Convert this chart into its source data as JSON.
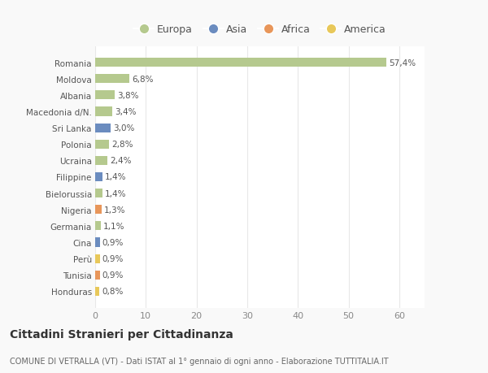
{
  "categories": [
    "Romania",
    "Moldova",
    "Albania",
    "Macedonia d/N.",
    "Sri Lanka",
    "Polonia",
    "Ucraina",
    "Filippine",
    "Bielorussia",
    "Nigeria",
    "Germania",
    "Cina",
    "Perù",
    "Tunisia",
    "Honduras"
  ],
  "values": [
    57.4,
    6.8,
    3.8,
    3.4,
    3.0,
    2.8,
    2.4,
    1.4,
    1.4,
    1.3,
    1.1,
    0.9,
    0.9,
    0.9,
    0.8
  ],
  "labels": [
    "57,4%",
    "6,8%",
    "3,8%",
    "3,4%",
    "3,0%",
    "2,8%",
    "2,4%",
    "1,4%",
    "1,4%",
    "1,3%",
    "1,1%",
    "0,9%",
    "0,9%",
    "0,9%",
    "0,8%"
  ],
  "colors": [
    "#b5c98e",
    "#b5c98e",
    "#b5c98e",
    "#b5c98e",
    "#6b8cbf",
    "#b5c98e",
    "#b5c98e",
    "#6b8cbf",
    "#b5c98e",
    "#e8965a",
    "#b5c98e",
    "#6b8cbf",
    "#e8c85a",
    "#e8965a",
    "#e8c85a"
  ],
  "legend_labels": [
    "Europa",
    "Asia",
    "Africa",
    "America"
  ],
  "legend_colors": [
    "#b5c98e",
    "#6b8cbf",
    "#e8965a",
    "#e8c85a"
  ],
  "xlim": [
    0,
    65
  ],
  "xticks": [
    0,
    10,
    20,
    30,
    40,
    50,
    60
  ],
  "title": "Cittadini Stranieri per Cittadinanza",
  "subtitle": "COMUNE DI VETRALLA (VT) - Dati ISTAT al 1° gennaio di ogni anno - Elaborazione TUTTITALIA.IT",
  "bg_color": "#f9f9f9",
  "plot_bg_color": "#ffffff",
  "grid_color": "#e8e8e8",
  "bar_height": 0.55
}
